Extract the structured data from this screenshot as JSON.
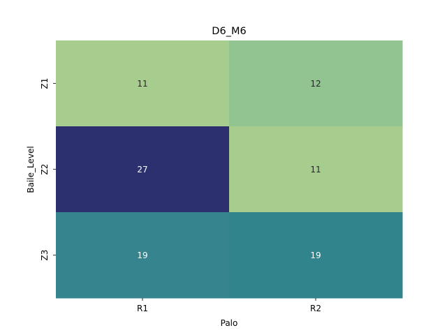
{
  "chart_data": {
    "type": "heatmap",
    "title": "D6_M6",
    "xlabel": "Palo",
    "ylabel": "Baile_Level",
    "x_categories": [
      "R1",
      "R2"
    ],
    "y_categories": [
      "Z1",
      "Z2",
      "Z3"
    ],
    "values": [
      [
        11,
        12
      ],
      [
        27,
        11
      ],
      [
        19,
        19
      ]
    ],
    "colorbar": false,
    "colors": [
      [
        "#a6cd8e",
        "#92c491"
      ],
      [
        "#2c306f",
        "#a6cd8e"
      ],
      [
        "#36858e",
        "#31848b"
      ]
    ],
    "text_colors": [
      [
        "#262626",
        "#262626"
      ],
      [
        "#ffffff",
        "#262626"
      ],
      [
        "#ffffff",
        "#ffffff"
      ]
    ]
  }
}
